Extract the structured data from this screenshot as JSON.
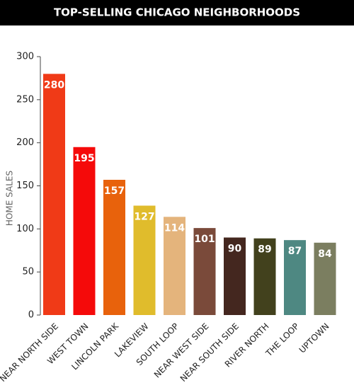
{
  "chart_data": {
    "type": "bar",
    "title": "TOP-SELLING CHICAGO NEIGHBORHOODS",
    "y_label": "HOME SALES",
    "categories": [
      "NEAR NORTH SIDE",
      "WEST TOWN",
      "LINCOLN PARK",
      "LAKEVIEW",
      "SOUTH LOOP",
      "NEAR WEST SIDE",
      "NEAR SOUTH SIDE",
      "RIVER NORTH",
      "THE LOOP",
      "UPTOWN"
    ],
    "values": [
      280,
      195,
      157,
      127,
      114,
      101,
      90,
      89,
      87,
      84
    ],
    "colors": [
      "#f03a17",
      "#f50a0a",
      "#e8620c",
      "#e0bc2c",
      "#e4b47c",
      "#7a4a3a",
      "#44271f",
      "#42411d",
      "#4e8882",
      "#7b7e60"
    ],
    "ylim": [
      0,
      300
    ],
    "yticks": [
      0,
      50,
      100,
      150,
      200,
      250,
      300
    ],
    "grid": false
  }
}
